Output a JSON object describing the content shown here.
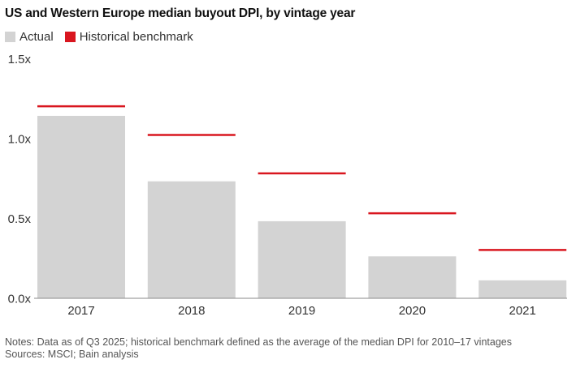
{
  "chart_data": {
    "type": "bar",
    "title": "US and Western Europe median buyout DPI, by vintage year",
    "categories": [
      "2017",
      "2018",
      "2019",
      "2020",
      "2021"
    ],
    "series": [
      {
        "name": "Actual",
        "type": "bar",
        "color": "#d3d3d3",
        "values": [
          1.14,
          0.73,
          0.48,
          0.26,
          0.11
        ]
      },
      {
        "name": "Historical benchmark",
        "type": "marker-line",
        "color": "#d9161f",
        "values": [
          1.2,
          1.02,
          0.78,
          0.53,
          0.3
        ]
      }
    ],
    "ylim": [
      0,
      1.5
    ],
    "yticks": [
      0,
      0.5,
      1.0,
      1.5
    ],
    "ytick_labels": [
      "0.0x",
      "0.5x",
      "1.0x",
      "1.5x"
    ],
    "xlabel": "",
    "ylabel": "",
    "legend": "top-left",
    "grid": false
  },
  "notes": "Notes: Data as of Q3 2025; historical benchmark defined as the average of the median DPI for 2010–17 vintages",
  "sources": "Sources: MSCI; Bain analysis"
}
